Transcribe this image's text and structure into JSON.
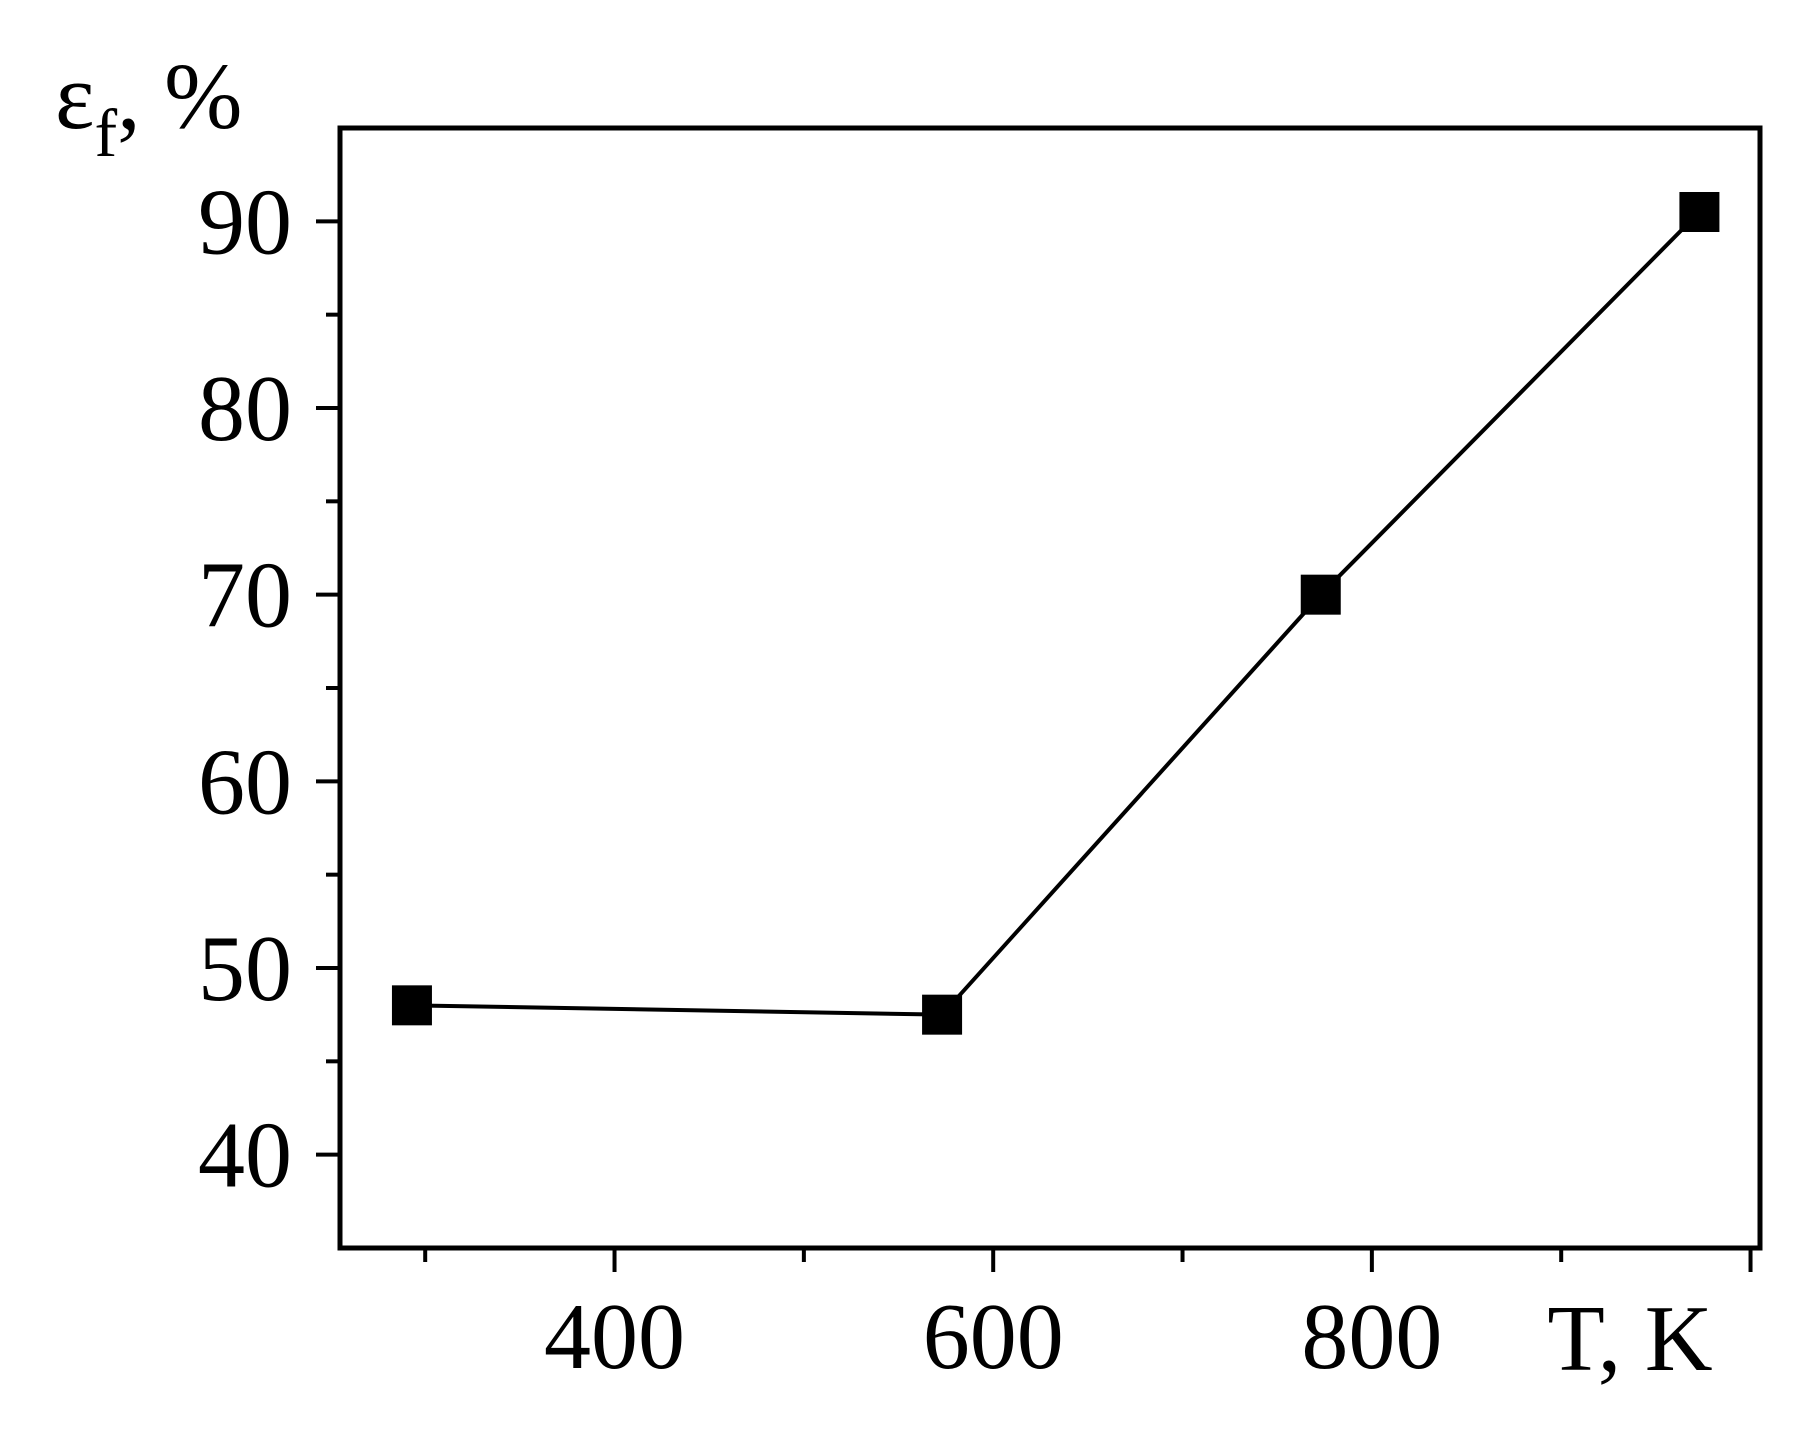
{
  "chart_data": {
    "type": "line",
    "title": "",
    "xlabel": "T, K",
    "ylabel": "ε",
    "ylabel_subscript": "f",
    "ylabel_unit": ", %",
    "xlim": [
      255,
      1005
    ],
    "ylim": [
      35,
      95
    ],
    "x_ticks_major": [
      400,
      600,
      800
    ],
    "x_ticks_all": [
      300,
      400,
      500,
      600,
      700,
      800,
      900,
      1000
    ],
    "y_ticks_major": [
      40,
      50,
      60,
      70,
      80,
      90
    ],
    "y_ticks_minor": [
      45,
      55,
      65,
      75,
      85
    ],
    "grid": false,
    "legend": "none",
    "series": [
      {
        "marker": "square",
        "x": [
          293,
          573,
          773,
          973
        ],
        "y": [
          48,
          47.5,
          70,
          90.5
        ]
      }
    ]
  }
}
